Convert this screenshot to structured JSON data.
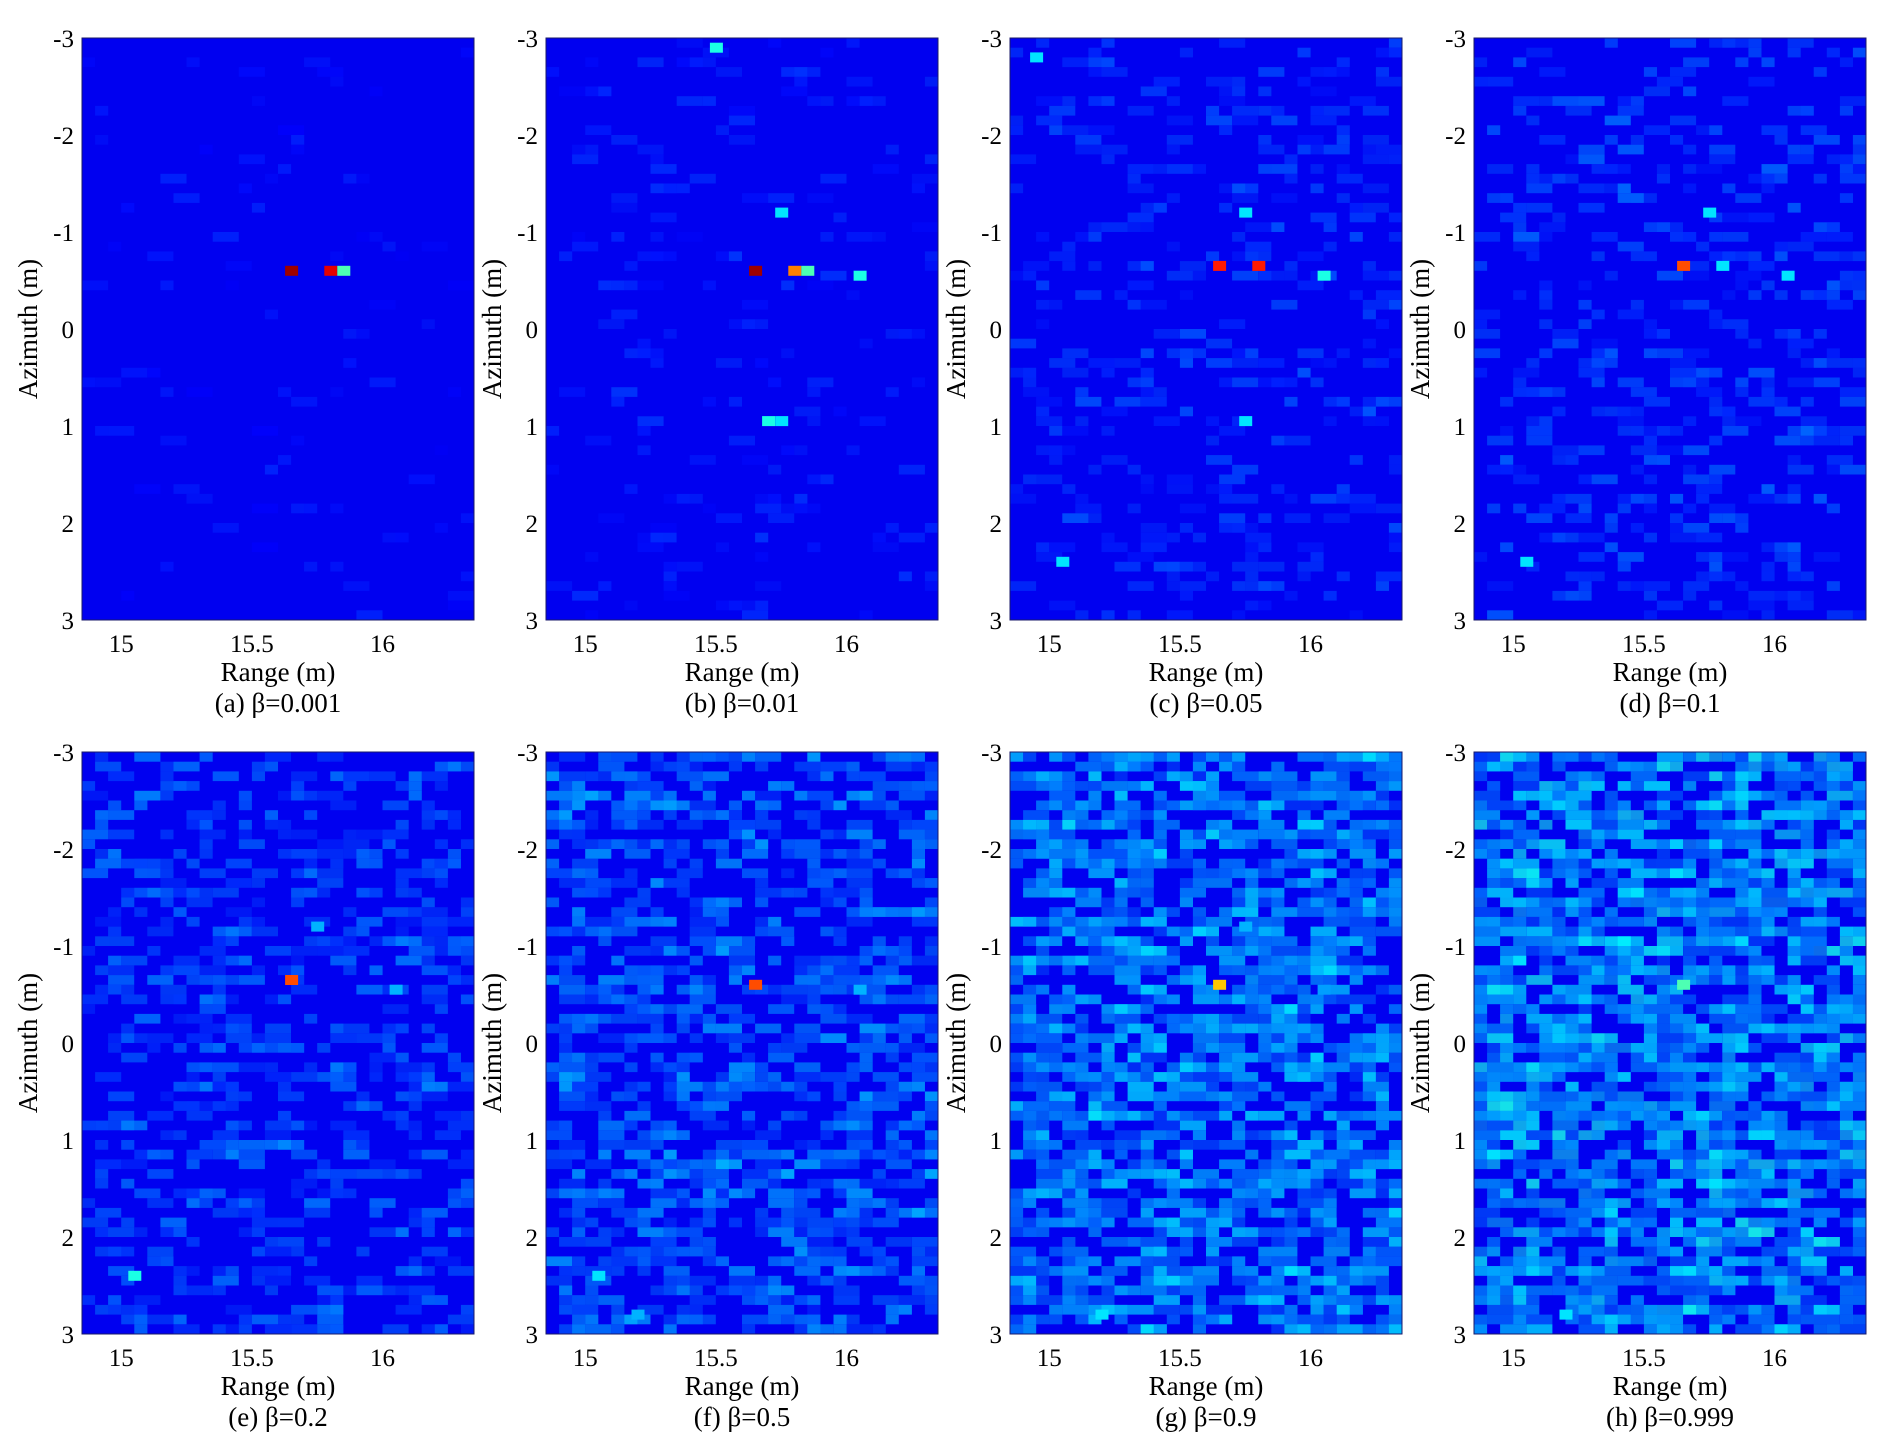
{
  "figure": {
    "panels": [
      {
        "caption": "(a) β=0.001"
      },
      {
        "caption": "(b) β=0.01"
      },
      {
        "caption": "(c) β=0.05"
      },
      {
        "caption": "(d) β=0.1"
      },
      {
        "caption": "(e) β=0.2"
      },
      {
        "caption": "(f) β=0.5"
      },
      {
        "caption": "(g) β=0.9"
      },
      {
        "caption": "(h) β=0.999"
      }
    ]
  },
  "chart_data": [
    {
      "type": "heatmap",
      "caption": "(a) β=0.001",
      "beta": 0.001,
      "xlabel": "Range (m)",
      "ylabel": "Azimuth (m)",
      "xlim": [
        14.85,
        16.35
      ],
      "ylim": [
        -3,
        3
      ],
      "xticks": [
        "15",
        "15.5",
        "16"
      ],
      "yticks": [
        "-3",
        "-2",
        "-1",
        "0",
        "1",
        "2",
        "3"
      ],
      "y_reversed": true,
      "colormap": "jet",
      "background_level": 0.0,
      "bright_spots": [
        {
          "range": 15.65,
          "azimuth": -0.6,
          "level": 0.97
        },
        {
          "range": 15.8,
          "azimuth": -0.6,
          "level": 0.9
        },
        {
          "range": 15.85,
          "azimuth": -0.6,
          "level": 0.45
        }
      ]
    },
    {
      "type": "heatmap",
      "caption": "(b) β=0.01",
      "beta": 0.01,
      "xlabel": "Range (m)",
      "ylabel": "Azimuth (m)",
      "xlim": [
        14.85,
        16.35
      ],
      "ylim": [
        -3,
        3
      ],
      "xticks": [
        "15",
        "15.5",
        "16"
      ],
      "yticks": [
        "-3",
        "-2",
        "-1",
        "0",
        "1",
        "2",
        "3"
      ],
      "y_reversed": true,
      "colormap": "jet",
      "background_level": 0.02,
      "bright_spots": [
        {
          "range": 15.5,
          "azimuth": -2.9,
          "level": 0.4
        },
        {
          "range": 15.75,
          "azimuth": -1.2,
          "level": 0.35
        },
        {
          "range": 15.65,
          "azimuth": -0.6,
          "level": 0.97
        },
        {
          "range": 15.8,
          "azimuth": -0.6,
          "level": 0.75
        },
        {
          "range": 15.85,
          "azimuth": -0.6,
          "level": 0.45
        },
        {
          "range": 16.05,
          "azimuth": -0.55,
          "level": 0.4
        },
        {
          "range": 15.7,
          "azimuth": 0.95,
          "level": 0.4
        },
        {
          "range": 15.75,
          "azimuth": 0.95,
          "level": 0.35
        }
      ]
    },
    {
      "type": "heatmap",
      "caption": "(c) β=0.05",
      "beta": 0.05,
      "xlabel": "Range (m)",
      "ylabel": "Azimuth (m)",
      "xlim": [
        14.85,
        16.35
      ],
      "ylim": [
        -3,
        3
      ],
      "xticks": [
        "15",
        "15.5",
        "16"
      ],
      "yticks": [
        "-3",
        "-2",
        "-1",
        "0",
        "1",
        "2",
        "3"
      ],
      "y_reversed": true,
      "colormap": "jet",
      "background_level": 0.05,
      "bright_spots": [
        {
          "range": 14.95,
          "azimuth": -2.8,
          "level": 0.35
        },
        {
          "range": 15.75,
          "azimuth": -1.2,
          "level": 0.35
        },
        {
          "range": 15.65,
          "azimuth": -0.65,
          "level": 0.85
        },
        {
          "range": 15.8,
          "azimuth": -0.65,
          "level": 0.85
        },
        {
          "range": 16.05,
          "azimuth": -0.55,
          "level": 0.4
        },
        {
          "range": 15.75,
          "azimuth": 0.95,
          "level": 0.35
        },
        {
          "range": 15.05,
          "azimuth": 2.4,
          "level": 0.35
        }
      ]
    },
    {
      "type": "heatmap",
      "caption": "(d) β=0.1",
      "beta": 0.1,
      "xlabel": "Range (m)",
      "ylabel": "Azimuth (m)",
      "xlim": [
        14.85,
        16.35
      ],
      "ylim": [
        -3,
        3
      ],
      "xticks": [
        "15",
        "15.5",
        "16"
      ],
      "yticks": [
        "-3",
        "-2",
        "-1",
        "0",
        "1",
        "2",
        "3"
      ],
      "y_reversed": true,
      "colormap": "jet",
      "background_level": 0.07,
      "bright_spots": [
        {
          "range": 15.75,
          "azimuth": -1.2,
          "level": 0.35
        },
        {
          "range": 15.65,
          "azimuth": -0.65,
          "level": 0.8
        },
        {
          "range": 15.8,
          "azimuth": -0.65,
          "level": 0.35
        },
        {
          "range": 16.05,
          "azimuth": -0.55,
          "level": 0.35
        },
        {
          "range": 15.05,
          "azimuth": 2.4,
          "level": 0.35
        }
      ]
    },
    {
      "type": "heatmap",
      "caption": "(e) β=0.2",
      "beta": 0.2,
      "xlabel": "Range (m)",
      "ylabel": "Azimuth (m)",
      "xlim": [
        14.85,
        16.35
      ],
      "ylim": [
        -3,
        3
      ],
      "xticks": [
        "15",
        "15.5",
        "16"
      ],
      "yticks": [
        "-3",
        "-2",
        "-1",
        "0",
        "1",
        "2",
        "3"
      ],
      "y_reversed": true,
      "colormap": "jet",
      "background_level": 0.1,
      "bright_spots": [
        {
          "range": 15.75,
          "azimuth": -1.2,
          "level": 0.3
        },
        {
          "range": 15.65,
          "azimuth": -0.65,
          "level": 0.8
        },
        {
          "range": 16.05,
          "azimuth": -0.55,
          "level": 0.3
        },
        {
          "range": 15.05,
          "azimuth": 2.4,
          "level": 0.4
        }
      ]
    },
    {
      "type": "heatmap",
      "caption": "(f) β=0.5",
      "beta": 0.5,
      "xlabel": "Range (m)",
      "ylabel": "Azimuth (m)",
      "xlim": [
        14.85,
        16.35
      ],
      "ylim": [
        -3,
        3
      ],
      "xticks": [
        "15",
        "15.5",
        "16"
      ],
      "yticks": [
        "-3",
        "-2",
        "-1",
        "0",
        "1",
        "2",
        "3"
      ],
      "y_reversed": true,
      "colormap": "jet",
      "background_level": 0.14,
      "bright_spots": [
        {
          "range": 15.65,
          "azimuth": -0.6,
          "level": 0.8
        },
        {
          "range": 16.05,
          "azimuth": -0.55,
          "level": 0.3
        },
        {
          "range": 15.05,
          "azimuth": 2.4,
          "level": 0.35
        },
        {
          "range": 15.2,
          "azimuth": 2.8,
          "level": 0.3
        }
      ]
    },
    {
      "type": "heatmap",
      "caption": "(g) β=0.9",
      "beta": 0.9,
      "xlabel": "Range (m)",
      "ylabel": "Azimuth (m)",
      "xlim": [
        14.85,
        16.35
      ],
      "ylim": [
        -3,
        3
      ],
      "xticks": [
        "15",
        "15.5",
        "16"
      ],
      "yticks": [
        "-3",
        "-2",
        "-1",
        "0",
        "1",
        "2",
        "3"
      ],
      "y_reversed": true,
      "colormap": "jet",
      "background_level": 0.2,
      "bright_spots": [
        {
          "range": 15.65,
          "azimuth": -0.6,
          "level": 0.68
        },
        {
          "range": 15.75,
          "azimuth": -1.2,
          "level": 0.3
        },
        {
          "range": 16.05,
          "azimuth": -0.55,
          "level": 0.28
        },
        {
          "range": 15.2,
          "azimuth": 2.8,
          "level": 0.35
        }
      ]
    },
    {
      "type": "heatmap",
      "caption": "(h) β=0.999",
      "beta": 0.999,
      "xlabel": "Range (m)",
      "ylabel": "Azimuth (m)",
      "xlim": [
        14.85,
        16.35
      ],
      "ylim": [
        -3,
        3
      ],
      "xticks": [
        "15",
        "15.5",
        "16"
      ],
      "yticks": [
        "-3",
        "-2",
        "-1",
        "0",
        "1",
        "2",
        "3"
      ],
      "y_reversed": true,
      "colormap": "jet",
      "background_level": 0.22,
      "bright_spots": [
        {
          "range": 15.65,
          "azimuth": -0.6,
          "level": 0.45
        },
        {
          "range": 15.2,
          "azimuth": 2.8,
          "level": 0.35
        }
      ]
    }
  ]
}
